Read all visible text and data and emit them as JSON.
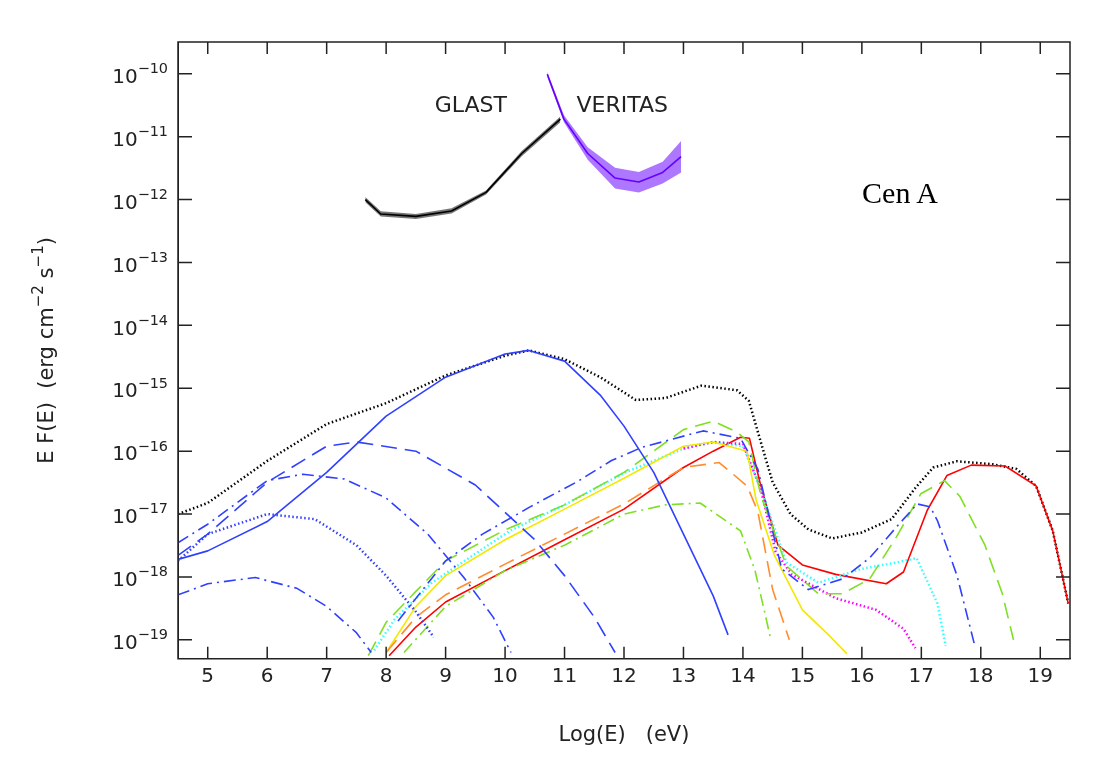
{
  "chart_data": {
    "type": "line",
    "xlabel": "Log(E)   (eV)",
    "ylabel": "E F(E)  (erg cm$^{−2}$ s$^{−1}$)",
    "log": "y",
    "grid": false,
    "annotations": [
      "Cen A"
    ],
    "xlim": [
      4.5,
      19.5
    ],
    "xticks": [
      5,
      6,
      7,
      8,
      9,
      10,
      11,
      12,
      13,
      14,
      15,
      16,
      17,
      18,
      19
    ],
    "ylim": [
      5e-20,
      3.2e-10
    ],
    "yticks": [
      {
        "value": 1e-10,
        "label": "10$^{−10}$"
      },
      {
        "value": 1e-11,
        "label": "10$^{−11}$"
      },
      {
        "value": 1e-12,
        "label": "10$^{−12}$"
      },
      {
        "value": 1e-13,
        "label": "10$^{−13}$"
      },
      {
        "value": 1e-14,
        "label": "10$^{−14}$"
      },
      {
        "value": 1e-15,
        "label": "10$^{−15}$"
      },
      {
        "value": 1e-16,
        "label": "10$^{−16}$"
      },
      {
        "value": 1e-17,
        "label": "10$^{−17}$"
      },
      {
        "value": 1e-18,
        "label": "10$^{−18}$"
      },
      {
        "value": 1e-19,
        "label": "10$^{−19}$"
      }
    ],
    "series": [
      {
        "name": "GLAST",
        "color": "#000000",
        "x": [
          7.65,
          7.91,
          8.5,
          9.1,
          9.68,
          10.28,
          10.93
        ],
        "values": [
          1e-12,
          5.9e-13,
          5.4e-13,
          6.6e-13,
          1.3e-12,
          5.4e-12,
          1.9e-11
        ],
        "lower": [
          9.1e-13,
          5.4e-13,
          4.9e-13,
          6e-13,
          1.2e-12,
          4.9e-12,
          1.7e-11
        ],
        "upper": [
          1.1e-12,
          6.5e-13,
          5.9e-13,
          7.3e-13,
          1.4e-12,
          5.9e-12,
          2.1e-11
        ],
        "line_style": "solid"
      },
      {
        "name": "VERITAS",
        "color": "#6600ff",
        "x": [
          10.71,
          10.99,
          11.39,
          11.85,
          12.25,
          12.65,
          12.96
        ],
        "values": [
          9.8e-11,
          1.9e-11,
          5.4e-12,
          2.2e-12,
          1.9e-12,
          2.7e-12,
          4.8e-12
        ],
        "lower": [
          8.9e-11,
          1.7e-11,
          4.3e-12,
          1.5e-12,
          1.3e-12,
          1.8e-12,
          2.7e-12
        ],
        "upper": [
          1.07e-10,
          2.2e-11,
          6.8e-12,
          3.2e-12,
          2.75e-12,
          4e-12,
          8.5e-12
        ],
        "line_style": "solid"
      },
      {
        "color": "#3040ff",
        "x": [
          4.5,
          5,
          6,
          7,
          8,
          9,
          10,
          10.4,
          11,
          11.6,
          12,
          12.5,
          13,
          13.5,
          13.75
        ],
        "values": [
          1.9e-18,
          2.6e-18,
          7.6e-18,
          4.6e-17,
          3.6e-16,
          1.5e-15,
          3.5e-15,
          4e-15,
          2.7e-15,
          7.8e-16,
          2.5e-16,
          4.6e-17,
          4.8e-18,
          5e-19,
          1.2e-19
        ],
        "line_style": "solid"
      },
      {
        "color": "#3040ff",
        "x": [
          4.5,
          5,
          6,
          7,
          7.5,
          8.5,
          9.5,
          10.5,
          11,
          11.5,
          11.85
        ],
        "values": [
          2.2e-18,
          4.8e-18,
          3.2e-17,
          1.2e-16,
          1.4e-16,
          1e-16,
          2.9e-17,
          3.9e-18,
          1.05e-18,
          2.3e-19,
          6.3e-20
        ],
        "line_style": "dashed"
      },
      {
        "color": "#3040ff",
        "x": [
          4.5,
          5,
          6,
          6.6,
          7.3,
          8,
          8.7,
          9.3,
          9.8,
          10.1
        ],
        "values": [
          3.5e-18,
          6.9e-18,
          3.4e-17,
          4.3e-17,
          3.6e-17,
          1.8e-17,
          4.8e-18,
          1e-18,
          2.3e-19,
          6.3e-20
        ],
        "line_style": "dashdot"
      },
      {
        "color": "#3040ff",
        "x": [
          4.5,
          5,
          6,
          6.8,
          7.5,
          8,
          8.5,
          8.8
        ],
        "values": [
          1.8e-18,
          4.8e-18,
          1e-17,
          8.3e-18,
          3.2e-18,
          1.05e-18,
          2.8e-19,
          1.1e-19
        ],
        "line_style": "dotted"
      },
      {
        "color": "#3040ff",
        "x": [
          4.5,
          5,
          5.8,
          6.5,
          7,
          7.5,
          7.75
        ],
        "values": [
          5.2e-19,
          7.8e-19,
          9.8e-19,
          6.6e-19,
          3.4e-19,
          1.3e-19,
          6.3e-20
        ],
        "line_style": "dashdot"
      },
      {
        "color": "#3040ff",
        "x": [
          8.2,
          9.0,
          9.62,
          10.42,
          11.22,
          11.79,
          12.3,
          13.33,
          13.96,
          14.25,
          14.65,
          15.1,
          15.67,
          16.13,
          16.58,
          16.93,
          17.15,
          17.27,
          17.6,
          17.9
        ],
        "values": [
          2e-19,
          1.8e-18,
          4.8e-18,
          1.3e-17,
          3.3e-17,
          7.1e-17,
          1.15e-16,
          2.1e-16,
          1.6e-16,
          5.2e-17,
          1.35e-18,
          6.3e-19,
          9.3e-19,
          2e-18,
          6.2e-18,
          1.45e-17,
          1.3e-17,
          7.9e-18,
          1.05e-18,
          8e-20
        ],
        "line_style": "dashdot"
      },
      {
        "color": "#7ee021",
        "x": [
          7.7,
          8,
          8.5,
          9,
          10,
          11,
          12,
          13,
          13.5,
          13.9,
          14.1,
          14.3,
          14.73,
          15.27,
          15.67,
          16.13,
          16.58,
          16.99,
          17.39,
          17.65,
          18.07,
          18.36,
          18.55
        ],
        "values": [
          5.6e-20,
          1.9e-19,
          5.9e-19,
          1.8e-18,
          5.6e-18,
          1.4e-17,
          4.6e-17,
          2.2e-16,
          3e-16,
          2e-16,
          1.4e-16,
          2e-17,
          1.5e-18,
          5.4e-19,
          5.4e-19,
          9.3e-19,
          4.3e-18,
          2.1e-17,
          3.4e-17,
          1.9e-17,
          3.2e-18,
          5.5e-19,
          1e-19
        ],
        "line_style": "dashed"
      },
      {
        "color": "#7ee021",
        "x": [
          8.3,
          9,
          10,
          11,
          12,
          12.7,
          13.28,
          13.96,
          14.2,
          14.35,
          14.47
        ],
        "values": [
          6.3e-20,
          3.4e-19,
          1.26e-18,
          3.2e-18,
          1e-17,
          1.4e-17,
          1.5e-17,
          5.4e-18,
          1.3e-18,
          3.2e-19,
          1e-19
        ],
        "line_style": "dashdot"
      },
      {
        "color": "#ff8c2e",
        "x": [
          8.0,
          8.5,
          9,
          10,
          11,
          12,
          13,
          13.6,
          14.07,
          14.25,
          14.5,
          14.78
        ],
        "values": [
          6.3e-20,
          2.3e-19,
          5.2e-19,
          1.6e-18,
          4.8e-18,
          1.45e-17,
          5.5e-17,
          6.6e-17,
          2.8e-17,
          1.1e-17,
          6.3e-19,
          1e-19
        ],
        "line_style": "dashed"
      },
      {
        "color": "#f5e800",
        "x": [
          8.0,
          8.5,
          9,
          10,
          11,
          12,
          13,
          13.5,
          14.07,
          14.22,
          14.53,
          15.0,
          15.44,
          15.75
        ],
        "values": [
          6.3e-20,
          3.4e-19,
          1.05e-18,
          3.9e-18,
          1.2e-17,
          3.7e-17,
          1.2e-16,
          1.4e-16,
          1e-16,
          1.7e-17,
          2.2e-18,
          3e-19,
          1.2e-19,
          6e-20
        ],
        "line_style": "solid"
      },
      {
        "color": "#ff00ff",
        "x": [
          13.0,
          13.5,
          14.0,
          14.3,
          14.55,
          14.82,
          15.56,
          16.24,
          16.7,
          16.9
        ],
        "values": [
          1.1e-16,
          1.4e-16,
          1.3e-16,
          2.5e-17,
          2.5e-18,
          1.1e-18,
          4.6e-19,
          3e-19,
          1.5e-19,
          7.4e-20
        ],
        "line_style": "dotted"
      },
      {
        "color": "#33ffff",
        "x": [
          7.8,
          8.14,
          8.77,
          9.28,
          10.08,
          11,
          12,
          13,
          13.5,
          14.0,
          14.3,
          14.73,
          15.27,
          16.0,
          16.58,
          16.92,
          17.27,
          17.41
        ],
        "values": [
          6.8e-20,
          2.1e-19,
          8.1e-19,
          1.7e-18,
          5.4e-18,
          1.4e-17,
          4.5e-17,
          1.1e-16,
          1.4e-16,
          1.2e-16,
          2.5e-17,
          1.7e-18,
          8.1e-19,
          1.35e-18,
          1.7e-18,
          2e-18,
          3.8e-19,
          8e-20
        ],
        "line_style": "dotted"
      },
      {
        "color": "#ff0000",
        "x": [
          8.05,
          8.5,
          9,
          10,
          11,
          12,
          13,
          13.5,
          13.96,
          14.11,
          14.3,
          14.59,
          15.0,
          15.56,
          16.41,
          16.7,
          17.1,
          17.43,
          17.84,
          18.41,
          18.93,
          19.21,
          19.47
        ],
        "values": [
          5.6e-20,
          1.6e-19,
          4e-19,
          1.26e-18,
          3.9e-18,
          1.2e-17,
          5.5e-17,
          1e-16,
          1.66e-16,
          1.6e-16,
          2.8e-17,
          3.2e-18,
          1.55e-18,
          1.1e-18,
          7.8e-19,
          1.2e-18,
          1.15e-17,
          4.1e-17,
          6e-17,
          5.8e-17,
          2.8e-17,
          5.4e-18,
          3.8e-19
        ],
        "line_style": "solid"
      },
      {
        "color": "#000000",
        "x": [
          4.5,
          5,
          6,
          7,
          8,
          9,
          10,
          10.4,
          11,
          11.6,
          12.2,
          12.7,
          13.3,
          13.9,
          14.1,
          14.3,
          14.5,
          14.8,
          15.1,
          15.5,
          16,
          16.5,
          16.9,
          17.2,
          17.6,
          18.2,
          18.6,
          18.93,
          19.21,
          19.47
        ],
        "values": [
          1e-17,
          1.5e-17,
          7e-17,
          2.7e-16,
          5.8e-16,
          1.6e-15,
          3.3e-15,
          4e-15,
          2.9e-15,
          1.5e-15,
          6.5e-16,
          7e-16,
          1.1e-15,
          9.3e-16,
          6.3e-16,
          1.4e-16,
          3.2e-17,
          1e-17,
          5.7e-18,
          4.1e-18,
          5.1e-18,
          8.3e-18,
          2.6e-17,
          5.5e-17,
          6.9e-17,
          6.2e-17,
          5.2e-17,
          2.8e-17,
          5.4e-18,
          3.8e-19
        ],
        "line_style": "dotted"
      }
    ]
  }
}
